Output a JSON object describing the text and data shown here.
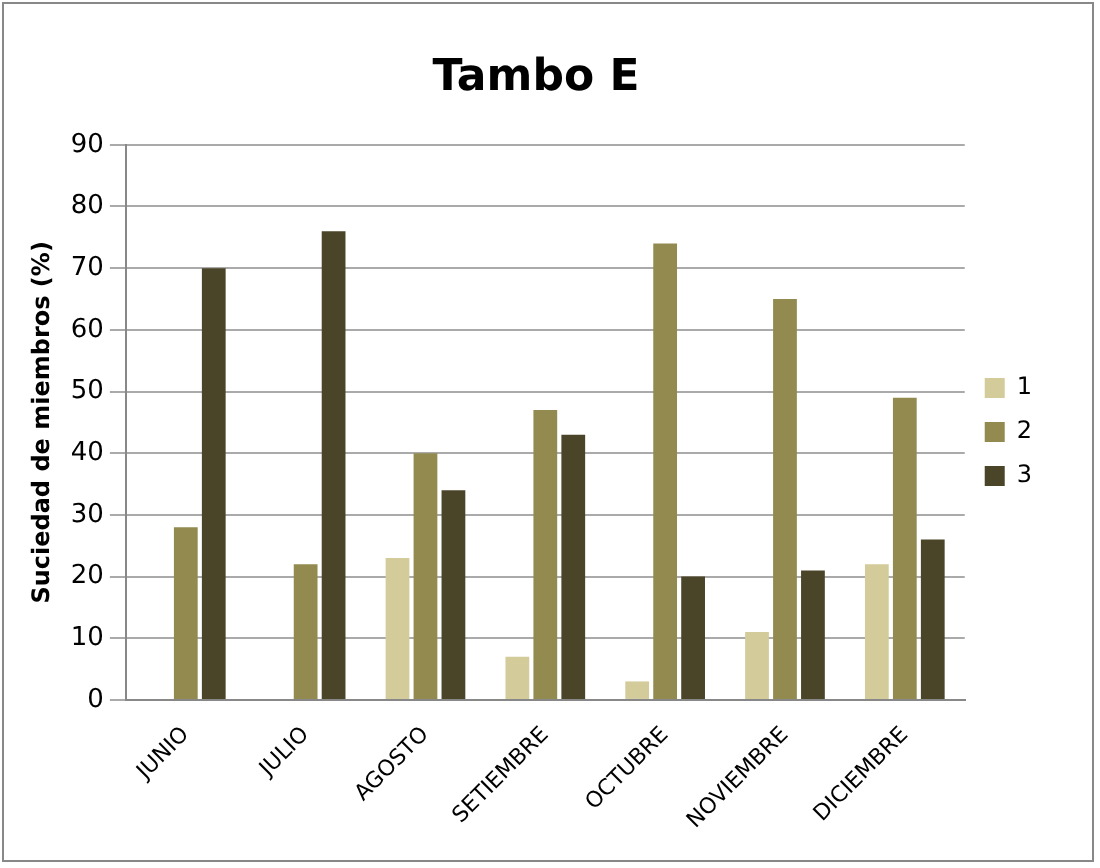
{
  "chart_data": {
    "type": "bar",
    "title": "Tambo E",
    "ylabel": "Suciedad de miembros (%)",
    "categories": [
      "JUNIO",
      "JULIO",
      "AGOSTO",
      "SETIEMBRE",
      "OCTUBRE",
      "NOVIEMBRE",
      "DICIEMBRE"
    ],
    "series": [
      {
        "name": "1",
        "color": "#d4cb9a",
        "values": [
          0,
          0,
          23,
          7,
          3,
          11,
          22
        ]
      },
      {
        "name": "2",
        "color": "#938a50",
        "values": [
          28,
          22,
          40,
          47,
          74,
          65,
          49
        ]
      },
      {
        "name": "3",
        "color": "#4a4528",
        "values": [
          70,
          76,
          34,
          43,
          20,
          21,
          26
        ]
      }
    ],
    "ylim": [
      0,
      90
    ],
    "yticks": [
      0,
      10,
      20,
      30,
      40,
      50,
      60,
      70,
      80,
      90
    ],
    "grid": "y",
    "legend": "right"
  }
}
